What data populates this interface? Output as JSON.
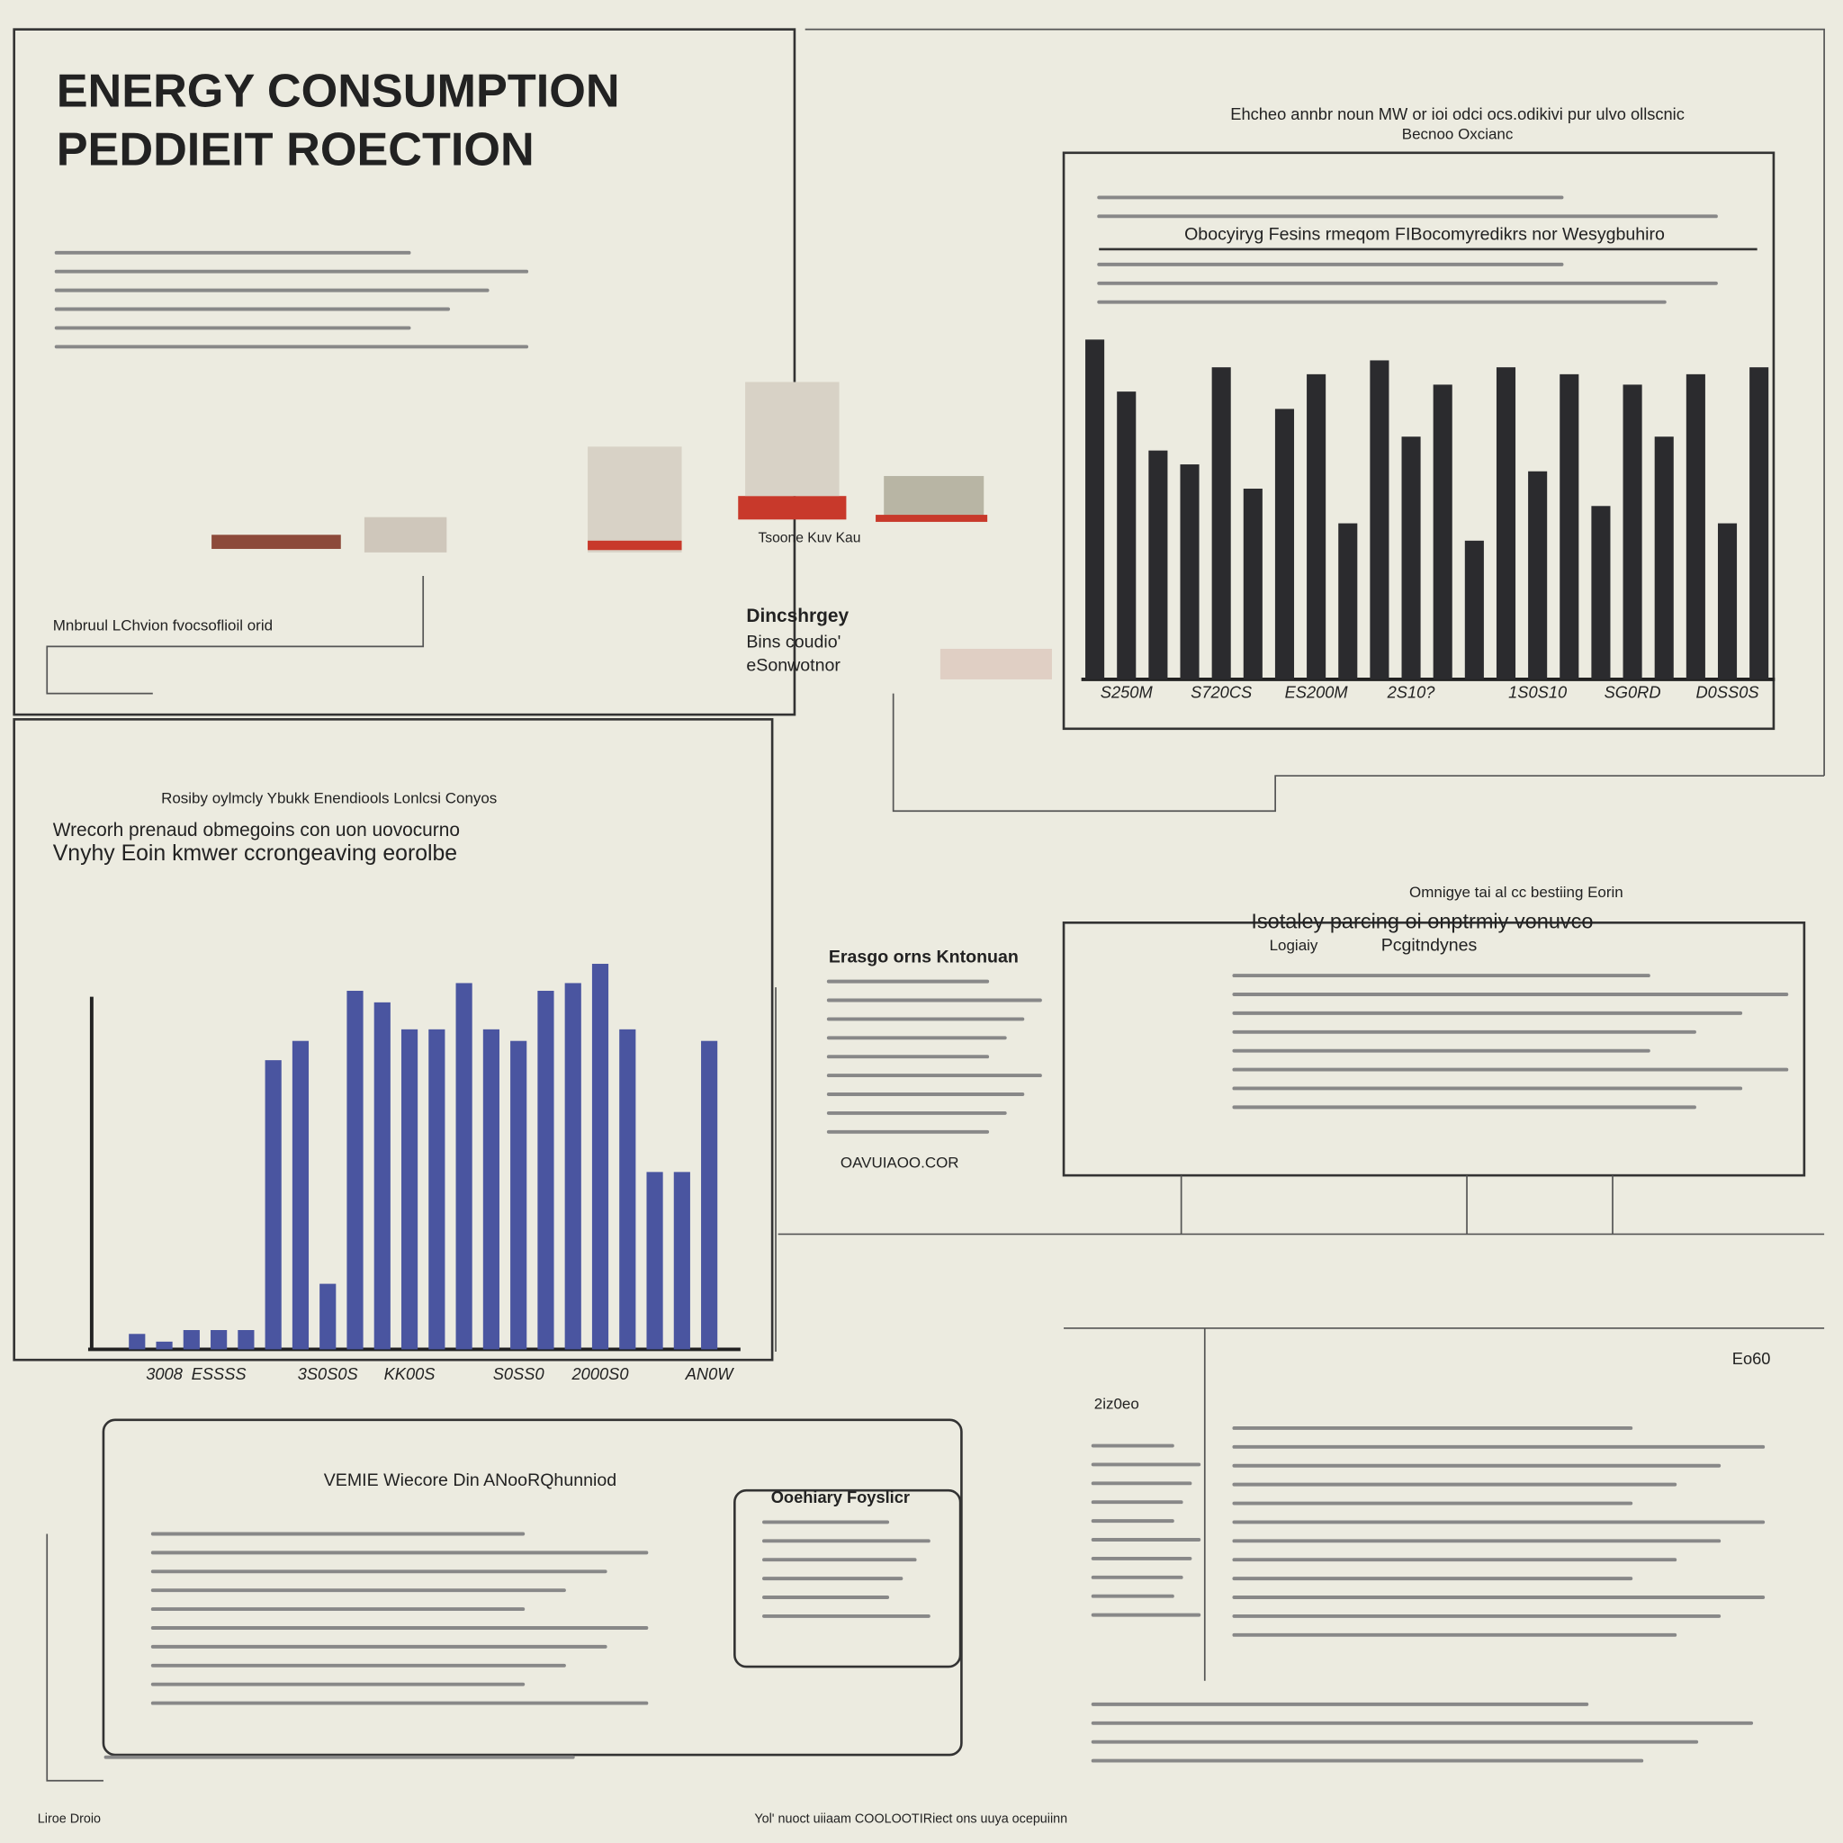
{
  "header": {
    "title": "ENERGY CONSUMPTION",
    "subtitle": "PEDDIEIT ROECTION"
  },
  "texts": {
    "top_heading": "Ehcheo annbr noun MW or ioi odci ocs.odikivi pur ulvo ollscnic",
    "top_subheading": "Becnoo Oxcianc",
    "top_band": "Obocyiryg Fesins rmeqom FIBocomyredikrs nor Wesygbuhiro",
    "left_label": "Mnbruul LChvion fvocsoflioil orid",
    "left_caption": "Tsoone Kuv Kau",
    "mid_heading_1": "Dincshrgey",
    "mid_heading_2": "Bins coudio'",
    "mid_heading_3": "eSonwotnor",
    "section_kicker": "Rosiby oylmcly Ybukk Enendiools Lonlcsi Conyos",
    "section_line_1": "Wrecorh prenaud obmegoins con uon uovocurno",
    "section_line_2": "Vnyhy Eoin kmwer ccrongeaving eorolbe",
    "side_heading": "Erasgo orns Kntonuan",
    "side_footer": "OAVUIAOO.COR",
    "right_kicker": "Omnigye tai al cc bestiing Eorin",
    "right_heading": "Isotaley parcing oi onptrmiy vonuvco",
    "right_sub_1": "Logiaiy",
    "right_sub_2": "Pcgitndynes",
    "bottom_heading": "VEMIE Wiecore Din ANooRQhunniod",
    "bottom_box_heading": "Ooehiary Foyslicr",
    "table_corner": "Eo60",
    "table_left": "2iz0eo",
    "footer_left": "Liroe Droio",
    "footer_center": "Yol' nuoct uiiaam COOLOOTIRiect ons uuya ocepuiinn"
  },
  "chart_data": [
    {
      "type": "bar",
      "categories": [
        null,
        "S250M",
        null,
        null,
        "S720CS",
        null,
        null,
        "ES200M",
        null,
        null,
        "2S10?",
        null,
        null,
        null,
        "1S0S10",
        null,
        null,
        "SG0RD",
        null,
        null,
        "D0SS0S",
        null
      ],
      "values": [
        98,
        83,
        66,
        62,
        90,
        55,
        78,
        88,
        45,
        92,
        70,
        85,
        40,
        90,
        60,
        88,
        50,
        85,
        70,
        88,
        45,
        90
      ],
      "color": "#2b2b2e",
      "ylim": [
        0,
        100
      ]
    },
    {
      "type": "bar",
      "categories": [
        null,
        "3008",
        null,
        "ESSSS",
        null,
        null,
        null,
        "3S0S0S",
        null,
        null,
        "KK00S",
        null,
        null,
        null,
        "S0SS0",
        null,
        null,
        "2000S0",
        null,
        null,
        null,
        "AN0W"
      ],
      "values": [
        4,
        2,
        5,
        5,
        5,
        75,
        80,
        17,
        93,
        90,
        83,
        83,
        95,
        83,
        80,
        93,
        95,
        100,
        83,
        46,
        46,
        80
      ],
      "color": "#4a55a0",
      "ylim": [
        0,
        100
      ]
    }
  ]
}
